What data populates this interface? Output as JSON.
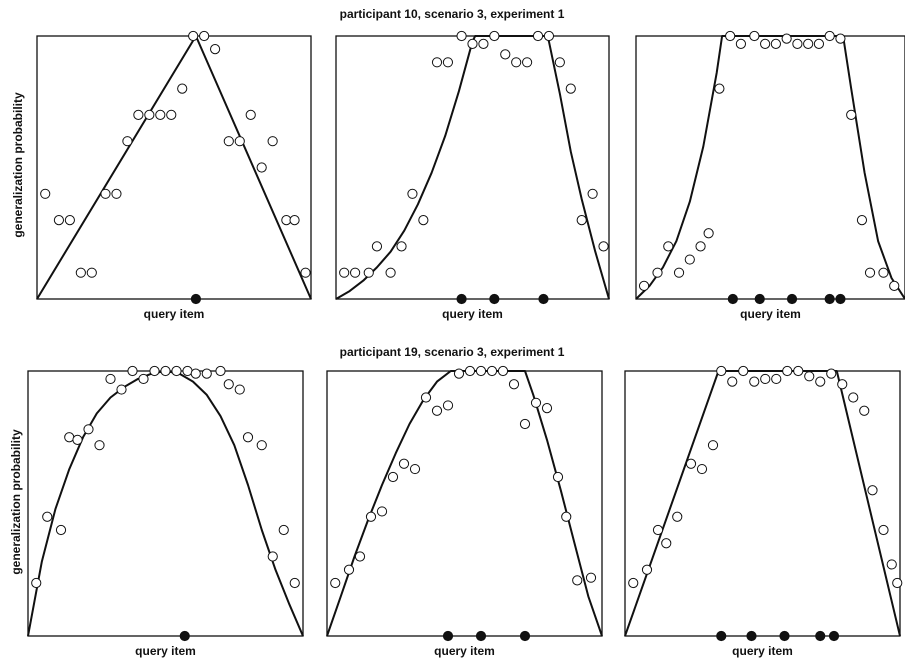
{
  "chart_data": [
    {
      "type": "scatter",
      "title": "participant 10, scenario 3, experiment 1",
      "ylabel": "generalization probability",
      "panels": [
        {
          "xlabel": "query item",
          "xlim": [
            0,
            100
          ],
          "ylim": [
            0,
            1
          ],
          "curve": [
            [
              0,
              0
            ],
            [
              58,
              1
            ],
            [
              100,
              0
            ]
          ],
          "examples": [
            58
          ],
          "points": [
            [
              3,
              0.4
            ],
            [
              8,
              0.3
            ],
            [
              12,
              0.3
            ],
            [
              16,
              0.1
            ],
            [
              20,
              0.1
            ],
            [
              25,
              0.4
            ],
            [
              29,
              0.4
            ],
            [
              33,
              0.6
            ],
            [
              37,
              0.7
            ],
            [
              41,
              0.7
            ],
            [
              45,
              0.7
            ],
            [
              49,
              0.7
            ],
            [
              53,
              0.8
            ],
            [
              57,
              1.0
            ],
            [
              61,
              1.0
            ],
            [
              65,
              0.95
            ],
            [
              70,
              0.6
            ],
            [
              74,
              0.6
            ],
            [
              78,
              0.7
            ],
            [
              82,
              0.5
            ],
            [
              86,
              0.6
            ],
            [
              91,
              0.3
            ],
            [
              94,
              0.3
            ],
            [
              98,
              0.1
            ]
          ]
        },
        {
          "xlabel": "query item",
          "xlim": [
            0,
            100
          ],
          "ylim": [
            0,
            1
          ],
          "curve": [
            [
              0,
              0
            ],
            [
              5,
              0.03
            ],
            [
              10,
              0.07
            ],
            [
              15,
              0.12
            ],
            [
              20,
              0.18
            ],
            [
              25,
              0.26
            ],
            [
              30,
              0.36
            ],
            [
              35,
              0.48
            ],
            [
              40,
              0.62
            ],
            [
              45,
              0.79
            ],
            [
              50,
              0.98
            ],
            [
              51,
              1.0
            ],
            [
              77,
              1.0
            ],
            [
              78,
              0.98
            ],
            [
              82,
              0.78
            ],
            [
              86,
              0.56
            ],
            [
              90,
              0.38
            ],
            [
              95,
              0.18
            ],
            [
              100,
              0
            ]
          ],
          "examples": [
            46,
            58,
            76
          ],
          "points": [
            [
              3,
              0.1
            ],
            [
              7,
              0.1
            ],
            [
              12,
              0.1
            ],
            [
              15,
              0.2
            ],
            [
              20,
              0.1
            ],
            [
              24,
              0.2
            ],
            [
              28,
              0.4
            ],
            [
              32,
              0.3
            ],
            [
              37,
              0.9
            ],
            [
              41,
              0.9
            ],
            [
              46,
              1.0
            ],
            [
              50,
              0.97
            ],
            [
              54,
              0.97
            ],
            [
              58,
              1.0
            ],
            [
              62,
              0.93
            ],
            [
              66,
              0.9
            ],
            [
              70,
              0.9
            ],
            [
              74,
              1.0
            ],
            [
              78,
              1.0
            ],
            [
              82,
              0.9
            ],
            [
              86,
              0.8
            ],
            [
              90,
              0.3
            ],
            [
              94,
              0.4
            ],
            [
              98,
              0.2
            ]
          ]
        },
        {
          "xlabel": "query item",
          "xlim": [
            0,
            100
          ],
          "ylim": [
            0,
            1
          ],
          "curve": [
            [
              0,
              0
            ],
            [
              5,
              0.05
            ],
            [
              10,
              0.12
            ],
            [
              15,
              0.22
            ],
            [
              20,
              0.37
            ],
            [
              25,
              0.58
            ],
            [
              30,
              0.86
            ],
            [
              32,
              1.0
            ],
            [
              77,
              1.0
            ],
            [
              80,
              0.8
            ],
            [
              85,
              0.48
            ],
            [
              90,
              0.22
            ],
            [
              95,
              0.08
            ],
            [
              100,
              0
            ]
          ],
          "examples": [
            36,
            46,
            58,
            72,
            76
          ],
          "points": [
            [
              3,
              0.05
            ],
            [
              8,
              0.1
            ],
            [
              12,
              0.2
            ],
            [
              16,
              0.1
            ],
            [
              20,
              0.15
            ],
            [
              24,
              0.2
            ],
            [
              27,
              0.25
            ],
            [
              31,
              0.8
            ],
            [
              35,
              1.0
            ],
            [
              39,
              0.97
            ],
            [
              44,
              1.0
            ],
            [
              48,
              0.97
            ],
            [
              52,
              0.97
            ],
            [
              56,
              0.99
            ],
            [
              60,
              0.97
            ],
            [
              64,
              0.97
            ],
            [
              68,
              0.97
            ],
            [
              72,
              1.0
            ],
            [
              76,
              0.99
            ],
            [
              80,
              0.7
            ],
            [
              84,
              0.3
            ],
            [
              87,
              0.1
            ],
            [
              92,
              0.1
            ],
            [
              96,
              0.05
            ]
          ]
        }
      ]
    },
    {
      "type": "scatter",
      "title": "participant 19, scenario 3, experiment 1",
      "ylabel": "generalization probability",
      "panels": [
        {
          "xlabel": "query item",
          "xlim": [
            0,
            100
          ],
          "ylim": [
            0,
            1
          ],
          "curve": [
            [
              0,
              0
            ],
            [
              5,
              0.28
            ],
            [
              10,
              0.48
            ],
            [
              15,
              0.63
            ],
            [
              20,
              0.75
            ],
            [
              25,
              0.84
            ],
            [
              30,
              0.9
            ],
            [
              35,
              0.94
            ],
            [
              40,
              0.97
            ],
            [
              45,
              0.99
            ],
            [
              50,
              1.0
            ],
            [
              55,
              0.99
            ],
            [
              60,
              0.96
            ],
            [
              65,
              0.91
            ],
            [
              70,
              0.83
            ],
            [
              75,
              0.72
            ],
            [
              80,
              0.57
            ],
            [
              85,
              0.4
            ],
            [
              90,
              0.25
            ],
            [
              95,
              0.12
            ],
            [
              100,
              0
            ]
          ],
          "examples": [
            57
          ],
          "points": [
            [
              3,
              0.2
            ],
            [
              7,
              0.45
            ],
            [
              12,
              0.4
            ],
            [
              15,
              0.75
            ],
            [
              18,
              0.74
            ],
            [
              22,
              0.78
            ],
            [
              26,
              0.72
            ],
            [
              30,
              0.97
            ],
            [
              34,
              0.93
            ],
            [
              38,
              1.0
            ],
            [
              42,
              0.97
            ],
            [
              46,
              1.0
            ],
            [
              50,
              1.0
            ],
            [
              54,
              1.0
            ],
            [
              58,
              1.0
            ],
            [
              61,
              0.99
            ],
            [
              65,
              0.99
            ],
            [
              70,
              1.0
            ],
            [
              73,
              0.95
            ],
            [
              77,
              0.93
            ],
            [
              80,
              0.75
            ],
            [
              85,
              0.72
            ],
            [
              89,
              0.3
            ],
            [
              93,
              0.4
            ],
            [
              97,
              0.2
            ]
          ]
        },
        {
          "xlabel": "query item",
          "xlim": [
            0,
            100
          ],
          "ylim": [
            0,
            1
          ],
          "curve": [
            [
              0,
              0
            ],
            [
              5,
              0.15
            ],
            [
              10,
              0.3
            ],
            [
              15,
              0.44
            ],
            [
              20,
              0.57
            ],
            [
              25,
              0.69
            ],
            [
              30,
              0.8
            ],
            [
              35,
              0.89
            ],
            [
              40,
              0.96
            ],
            [
              45,
              1.0
            ],
            [
              72,
              1.0
            ],
            [
              75,
              0.91
            ],
            [
              80,
              0.74
            ],
            [
              85,
              0.55
            ],
            [
              90,
              0.35
            ],
            [
              95,
              0.15
            ],
            [
              100,
              0
            ]
          ],
          "examples": [
            44,
            56,
            72
          ],
          "points": [
            [
              3,
              0.2
            ],
            [
              8,
              0.25
            ],
            [
              12,
              0.3
            ],
            [
              16,
              0.45
            ],
            [
              20,
              0.47
            ],
            [
              24,
              0.6
            ],
            [
              28,
              0.65
            ],
            [
              32,
              0.63
            ],
            [
              36,
              0.9
            ],
            [
              40,
              0.85
            ],
            [
              44,
              0.87
            ],
            [
              48,
              0.99
            ],
            [
              52,
              1.0
            ],
            [
              56,
              1.0
            ],
            [
              60,
              1.0
            ],
            [
              64,
              1.0
            ],
            [
              68,
              0.95
            ],
            [
              72,
              0.8
            ],
            [
              76,
              0.88
            ],
            [
              80,
              0.86
            ],
            [
              84,
              0.6
            ],
            [
              87,
              0.45
            ],
            [
              91,
              0.21
            ],
            [
              96,
              0.22
            ]
          ]
        },
        {
          "xlabel": "query item",
          "xlim": [
            0,
            100
          ],
          "ylim": [
            0,
            1
          ],
          "curve": [
            [
              0,
              0
            ],
            [
              34,
              1.0
            ],
            [
              77,
              1.0
            ],
            [
              100,
              0
            ]
          ],
          "examples": [
            35,
            46,
            58,
            71,
            76
          ],
          "points": [
            [
              3,
              0.2
            ],
            [
              8,
              0.25
            ],
            [
              12,
              0.4
            ],
            [
              15,
              0.35
            ],
            [
              19,
              0.45
            ],
            [
              24,
              0.65
            ],
            [
              28,
              0.63
            ],
            [
              32,
              0.72
            ],
            [
              35,
              1.0
            ],
            [
              39,
              0.96
            ],
            [
              43,
              1.0
            ],
            [
              47,
              0.96
            ],
            [
              51,
              0.97
            ],
            [
              55,
              0.97
            ],
            [
              59,
              1.0
            ],
            [
              63,
              1.0
            ],
            [
              67,
              0.98
            ],
            [
              71,
              0.96
            ],
            [
              75,
              0.99
            ],
            [
              79,
              0.95
            ],
            [
              83,
              0.9
            ],
            [
              87,
              0.85
            ],
            [
              90,
              0.55
            ],
            [
              94,
              0.4
            ],
            [
              97,
              0.27
            ],
            [
              99,
              0.2
            ]
          ]
        }
      ]
    }
  ]
}
